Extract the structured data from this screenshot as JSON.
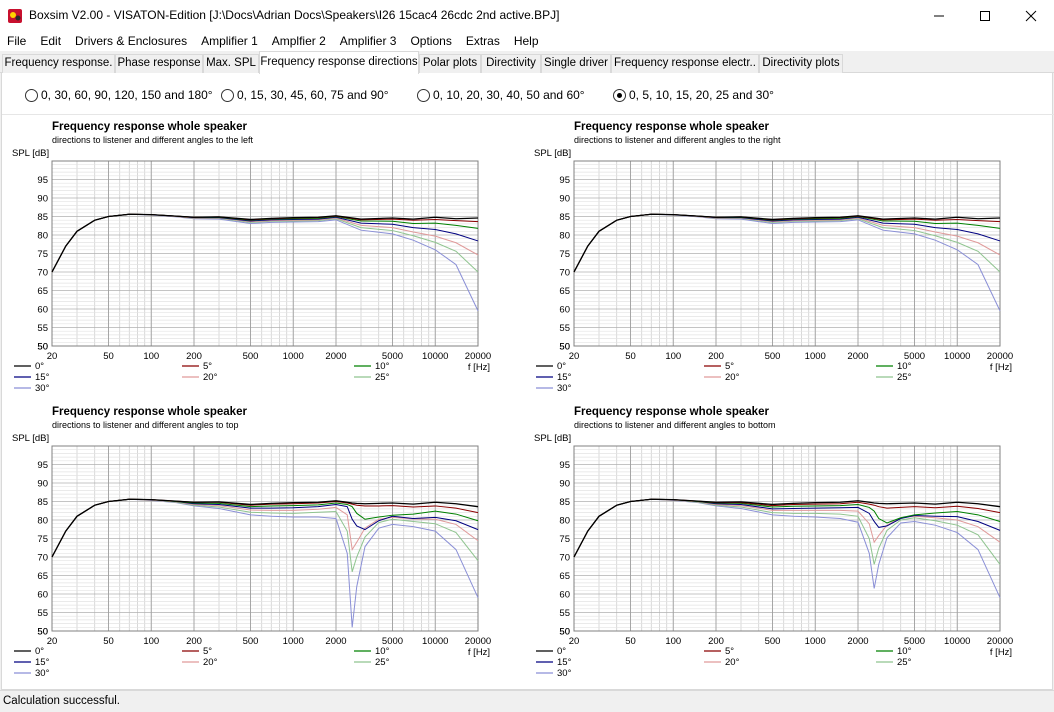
{
  "window": {
    "title": "Boxsim V2.00 - VISATON-Edition [J:\\Docs\\Adrian Docs\\Speakers\\I26 15cac4 26cdc 2nd active.BPJ]",
    "controls": [
      "minimize-icon",
      "maximize-icon",
      "close-icon"
    ]
  },
  "menu": [
    "File",
    "Edit",
    "Drivers & Enclosures",
    "Amplifier 1",
    "Amplfier 2",
    "Amplifier 3",
    "Options",
    "Extras",
    "Help"
  ],
  "tabs": [
    {
      "label": "Frequency response.",
      "active": false
    },
    {
      "label": "Phase response",
      "active": false
    },
    {
      "label": "Max. SPL",
      "active": false
    },
    {
      "label": "Frequency response directions",
      "active": true
    },
    {
      "label": "Polar plots",
      "active": false
    },
    {
      "label": "Directivity",
      "active": false
    },
    {
      "label": "Single driver",
      "active": false
    },
    {
      "label": "Frequency response electr..",
      "active": false
    },
    {
      "label": "Directivity plots",
      "active": false
    }
  ],
  "angle_options": [
    {
      "label": "0, 30, 60, 90, 120, 150 and 180°",
      "selected": false
    },
    {
      "label": "0, 15, 30, 45, 60, 75 and 90°",
      "selected": false
    },
    {
      "label": "0, 10, 20, 30, 40, 50 and 60°",
      "selected": false
    },
    {
      "label": "0, 5, 10, 15, 20, 25 and 30°",
      "selected": true
    }
  ],
  "status": "Calculation successful.",
  "colors": {
    "0°": "#000000",
    "5°": "#8b0000",
    "10°": "#008000",
    "15°": "#000080",
    "20°": "#e09a9a",
    "25°": "#8fc48f",
    "30°": "#8a8fd6"
  },
  "chart_data": [
    {
      "type": "line",
      "title": "Frequency response whole speaker",
      "subtitle": "directions to listener and different angles to the left",
      "ylabel": "SPL [dB]",
      "xlabel": "f [Hz]",
      "xscale": "log",
      "xlim": [
        20,
        20000
      ],
      "ylim": [
        50,
        100
      ],
      "xticks": [
        20,
        50,
        100,
        200,
        500,
        1000,
        2000,
        5000,
        10000,
        20000
      ],
      "yticks": [
        50,
        55,
        60,
        65,
        70,
        75,
        80,
        85,
        90,
        95
      ],
      "grid": true,
      "legend": "bottom",
      "x": [
        20,
        25,
        30,
        40,
        50,
        70,
        100,
        150,
        200,
        300,
        500,
        700,
        1000,
        1500,
        2000,
        3000,
        5000,
        7000,
        10000,
        14000,
        20000
      ],
      "series": [
        {
          "name": "0°",
          "values": [
            70,
            77,
            81,
            84,
            85,
            85.6,
            85.5,
            85.1,
            84.8,
            84.9,
            84.2,
            84.5,
            84.7,
            84.8,
            85.2,
            84.3,
            84.6,
            84.3,
            84.8,
            84.4,
            84.6
          ]
        },
        {
          "name": "5°",
          "values": [
            70,
            77,
            81,
            84,
            85,
            85.6,
            85.5,
            85.1,
            84.8,
            84.9,
            84.1,
            84.4,
            84.6,
            84.7,
            85.1,
            84.1,
            84.3,
            84.0,
            84.2,
            83.9,
            83.6
          ]
        },
        {
          "name": "10°",
          "values": [
            70,
            77,
            81,
            84,
            85,
            85.6,
            85.5,
            85.1,
            84.8,
            84.8,
            84.0,
            84.3,
            84.4,
            84.5,
            85.0,
            83.8,
            83.7,
            83.1,
            83.2,
            82.6,
            81.8
          ]
        },
        {
          "name": "15°",
          "values": [
            70,
            77,
            81,
            84,
            85,
            85.6,
            85.5,
            85.1,
            84.7,
            84.7,
            83.8,
            84.1,
            84.2,
            84.3,
            84.8,
            83.2,
            82.9,
            82.0,
            81.5,
            80.3,
            78.4
          ]
        },
        {
          "name": "20°",
          "values": [
            70,
            77,
            81,
            84,
            85,
            85.6,
            85.5,
            85.0,
            84.6,
            84.6,
            83.6,
            83.9,
            84.0,
            84.1,
            84.6,
            82.6,
            82.0,
            80.8,
            79.7,
            77.9,
            74.6
          ]
        },
        {
          "name": "25°",
          "values": [
            70,
            77,
            81,
            84,
            85,
            85.6,
            85.5,
            85.0,
            84.5,
            84.5,
            83.4,
            83.7,
            83.8,
            83.9,
            84.4,
            82.0,
            81.2,
            79.8,
            78.0,
            75.6,
            70.0
          ]
        },
        {
          "name": "30°",
          "values": [
            70,
            77,
            81,
            84,
            85,
            85.6,
            85.4,
            84.9,
            84.4,
            84.3,
            83.1,
            83.4,
            83.5,
            83.6,
            84.1,
            81.3,
            80.3,
            78.6,
            76.0,
            72.0,
            59.5
          ]
        }
      ]
    },
    {
      "type": "line",
      "title": "Frequency response whole speaker",
      "subtitle": "directions to listener and different angles to the right",
      "ylabel": "SPL [dB]",
      "xlabel": "f [Hz]",
      "xscale": "log",
      "xlim": [
        20,
        20000
      ],
      "ylim": [
        50,
        100
      ],
      "xticks": [
        20,
        50,
        100,
        200,
        500,
        1000,
        2000,
        5000,
        10000,
        20000
      ],
      "yticks": [
        50,
        55,
        60,
        65,
        70,
        75,
        80,
        85,
        90,
        95
      ],
      "grid": true,
      "legend": "bottom",
      "x": [
        20,
        25,
        30,
        40,
        50,
        70,
        100,
        150,
        200,
        300,
        500,
        700,
        1000,
        1500,
        2000,
        3000,
        5000,
        7000,
        10000,
        14000,
        20000
      ],
      "series": [
        {
          "name": "0°",
          "values": [
            70,
            77,
            81,
            84,
            85,
            85.6,
            85.5,
            85.1,
            84.8,
            84.9,
            84.2,
            84.5,
            84.7,
            84.8,
            85.2,
            84.3,
            84.6,
            84.3,
            84.8,
            84.4,
            84.6
          ]
        },
        {
          "name": "5°",
          "values": [
            70,
            77,
            81,
            84,
            85,
            85.6,
            85.5,
            85.1,
            84.8,
            84.9,
            84.1,
            84.4,
            84.6,
            84.7,
            85.1,
            84.1,
            84.3,
            84.0,
            84.2,
            83.9,
            83.6
          ]
        },
        {
          "name": "10°",
          "values": [
            70,
            77,
            81,
            84,
            85,
            85.6,
            85.5,
            85.1,
            84.8,
            84.8,
            84.0,
            84.3,
            84.4,
            84.5,
            85.0,
            83.8,
            83.7,
            83.1,
            83.2,
            82.6,
            81.8
          ]
        },
        {
          "name": "15°",
          "values": [
            70,
            77,
            81,
            84,
            85,
            85.6,
            85.5,
            85.1,
            84.7,
            84.7,
            83.8,
            84.1,
            84.2,
            84.3,
            84.8,
            83.2,
            82.9,
            82.0,
            81.5,
            80.3,
            78.4
          ]
        },
        {
          "name": "20°",
          "values": [
            70,
            77,
            81,
            84,
            85,
            85.6,
            85.5,
            85.0,
            84.6,
            84.6,
            83.6,
            83.9,
            84.0,
            84.1,
            84.6,
            82.6,
            82.0,
            80.8,
            79.7,
            77.9,
            74.6
          ]
        },
        {
          "name": "25°",
          "values": [
            70,
            77,
            81,
            84,
            85,
            85.6,
            85.5,
            85.0,
            84.5,
            84.5,
            83.4,
            83.7,
            83.8,
            83.9,
            84.4,
            82.0,
            81.2,
            79.8,
            78.0,
            75.6,
            70.0
          ]
        },
        {
          "name": "30°",
          "values": [
            70,
            77,
            81,
            84,
            85,
            85.6,
            85.4,
            84.9,
            84.4,
            84.3,
            83.1,
            83.4,
            83.5,
            83.6,
            84.1,
            81.3,
            80.3,
            78.6,
            76.0,
            72.0,
            59.5
          ]
        }
      ]
    },
    {
      "type": "line",
      "title": "Frequency response whole speaker",
      "subtitle": "directions to listener and different angles to top",
      "ylabel": "SPL [dB]",
      "xlabel": "f [Hz]",
      "xscale": "log",
      "xlim": [
        20,
        20000
      ],
      "ylim": [
        50,
        100
      ],
      "xticks": [
        20,
        50,
        100,
        200,
        500,
        1000,
        2000,
        5000,
        10000,
        20000
      ],
      "yticks": [
        50,
        55,
        60,
        65,
        70,
        75,
        80,
        85,
        90,
        95
      ],
      "grid": true,
      "legend": "bottom",
      "x": [
        20,
        25,
        30,
        40,
        50,
        70,
        100,
        150,
        200,
        300,
        500,
        700,
        1000,
        1500,
        2000,
        2400,
        2600,
        2800,
        3200,
        4000,
        5000,
        7000,
        10000,
        14000,
        20000
      ],
      "series": [
        {
          "name": "0°",
          "values": [
            70,
            77,
            81,
            84,
            85,
            85.6,
            85.5,
            85.1,
            84.8,
            84.9,
            84.2,
            84.5,
            84.7,
            84.8,
            85.2,
            84.8,
            84.6,
            84.5,
            84.4,
            84.5,
            84.6,
            84.3,
            84.8,
            84.4,
            83.6
          ]
        },
        {
          "name": "5°",
          "values": [
            70,
            77,
            81,
            84,
            85,
            85.6,
            85.5,
            85.1,
            84.8,
            84.8,
            84.0,
            84.3,
            84.4,
            84.6,
            85.0,
            84.6,
            84.3,
            84.0,
            83.8,
            83.8,
            83.9,
            83.5,
            83.8,
            83.2,
            82.0
          ]
        },
        {
          "name": "10°",
          "values": [
            70,
            77,
            81,
            84,
            85,
            85.6,
            85.5,
            85.0,
            84.6,
            84.5,
            83.6,
            83.8,
            83.9,
            84.1,
            84.6,
            84.2,
            83.6,
            81.8,
            80.2,
            80.8,
            81.3,
            81.6,
            82.4,
            81.6,
            79.8
          ]
        },
        {
          "name": "15°",
          "values": [
            70,
            77,
            81,
            84,
            85,
            85.6,
            85.5,
            85.0,
            84.4,
            84.2,
            83.2,
            83.2,
            83.3,
            83.6,
            84.2,
            83.6,
            80.2,
            78.4,
            77.4,
            79.8,
            81.0,
            80.4,
            80.7,
            79.8,
            77.4
          ]
        },
        {
          "name": "20°",
          "values": [
            70,
            77,
            81,
            84,
            85,
            85.6,
            85.4,
            84.9,
            84.2,
            83.9,
            82.7,
            82.6,
            82.6,
            82.9,
            83.4,
            81.4,
            72.0,
            74.0,
            77.8,
            80.2,
            80.7,
            80.3,
            80.2,
            78.8,
            74.4
          ]
        },
        {
          "name": "25°",
          "values": [
            70,
            77,
            81,
            84,
            85,
            85.6,
            85.4,
            84.8,
            84.0,
            83.5,
            82.1,
            81.9,
            81.8,
            82.1,
            82.3,
            77.0,
            66.0,
            70.0,
            75.4,
            79.3,
            80.2,
            79.6,
            79.0,
            76.6,
            69.0
          ]
        },
        {
          "name": "30°",
          "values": [
            70,
            77,
            81,
            84,
            85,
            85.6,
            85.3,
            84.7,
            83.8,
            83.1,
            81.4,
            81.0,
            80.8,
            80.8,
            80.4,
            71.0,
            51.0,
            62.0,
            72.8,
            77.8,
            78.8,
            78.2,
            77.0,
            72.0,
            59.0
          ]
        }
      ]
    },
    {
      "type": "line",
      "title": "Frequency response whole speaker",
      "subtitle": "directions to listener and different angles to bottom",
      "ylabel": "SPL [dB]",
      "xlabel": "f [Hz]",
      "xscale": "log",
      "xlim": [
        20,
        20000
      ],
      "ylim": [
        50,
        100
      ],
      "xticks": [
        20,
        50,
        100,
        200,
        500,
        1000,
        2000,
        5000,
        10000,
        20000
      ],
      "yticks": [
        50,
        55,
        60,
        65,
        70,
        75,
        80,
        85,
        90,
        95
      ],
      "grid": true,
      "legend": "bottom",
      "x": [
        20,
        25,
        30,
        40,
        50,
        70,
        100,
        150,
        200,
        300,
        500,
        700,
        1000,
        1500,
        2000,
        2400,
        2600,
        2800,
        3200,
        4000,
        5000,
        7000,
        10000,
        14000,
        20000
      ],
      "series": [
        {
          "name": "0°",
          "values": [
            70,
            77,
            81,
            84,
            85,
            85.6,
            85.5,
            85.1,
            84.8,
            84.9,
            84.2,
            84.5,
            84.7,
            84.8,
            85.2,
            84.8,
            84.6,
            84.5,
            84.4,
            84.5,
            84.6,
            84.3,
            84.8,
            84.4,
            83.6
          ]
        },
        {
          "name": "5°",
          "values": [
            70,
            77,
            81,
            84,
            85,
            85.6,
            85.5,
            85.1,
            84.7,
            84.7,
            83.9,
            84.2,
            84.3,
            84.4,
            84.8,
            84.3,
            84.0,
            83.6,
            83.2,
            83.4,
            83.6,
            83.3,
            83.7,
            83.1,
            82.0
          ]
        },
        {
          "name": "10°",
          "values": [
            70,
            77,
            81,
            84,
            85,
            85.6,
            85.5,
            85.0,
            84.6,
            84.5,
            83.5,
            83.7,
            83.8,
            83.9,
            84.2,
            83.4,
            82.4,
            80.4,
            79.2,
            80.6,
            81.4,
            81.9,
            82.3,
            81.4,
            79.6
          ]
        },
        {
          "name": "15°",
          "values": [
            70,
            77,
            81,
            84,
            85,
            85.6,
            85.5,
            85.0,
            84.4,
            84.2,
            83.0,
            83.1,
            83.2,
            83.3,
            83.4,
            81.8,
            79.6,
            78.0,
            78.4,
            80.4,
            81.2,
            81.0,
            80.9,
            79.6,
            77.2
          ]
        },
        {
          "name": "20°",
          "values": [
            70,
            77,
            81,
            84,
            85,
            85.6,
            85.4,
            84.9,
            84.2,
            83.9,
            82.6,
            82.6,
            82.6,
            82.6,
            82.4,
            79.0,
            74.0,
            75.8,
            78.6,
            80.6,
            81.0,
            80.6,
            80.0,
            78.2,
            74.0
          ]
        },
        {
          "name": "25°",
          "values": [
            70,
            77,
            81,
            84,
            85,
            85.6,
            85.4,
            84.8,
            84.0,
            83.5,
            82.0,
            81.8,
            81.8,
            81.6,
            81.0,
            75.0,
            68.0,
            72.4,
            77.2,
            80.0,
            80.6,
            79.8,
            78.6,
            76.0,
            68.0
          ]
        },
        {
          "name": "30°",
          "values": [
            70,
            77,
            81,
            84,
            85,
            85.6,
            85.3,
            84.7,
            83.8,
            83.1,
            81.4,
            81.0,
            80.8,
            80.4,
            79.4,
            71.0,
            61.5,
            68.0,
            75.2,
            79.2,
            79.6,
            78.6,
            76.6,
            72.0,
            59.0
          ]
        }
      ]
    }
  ]
}
